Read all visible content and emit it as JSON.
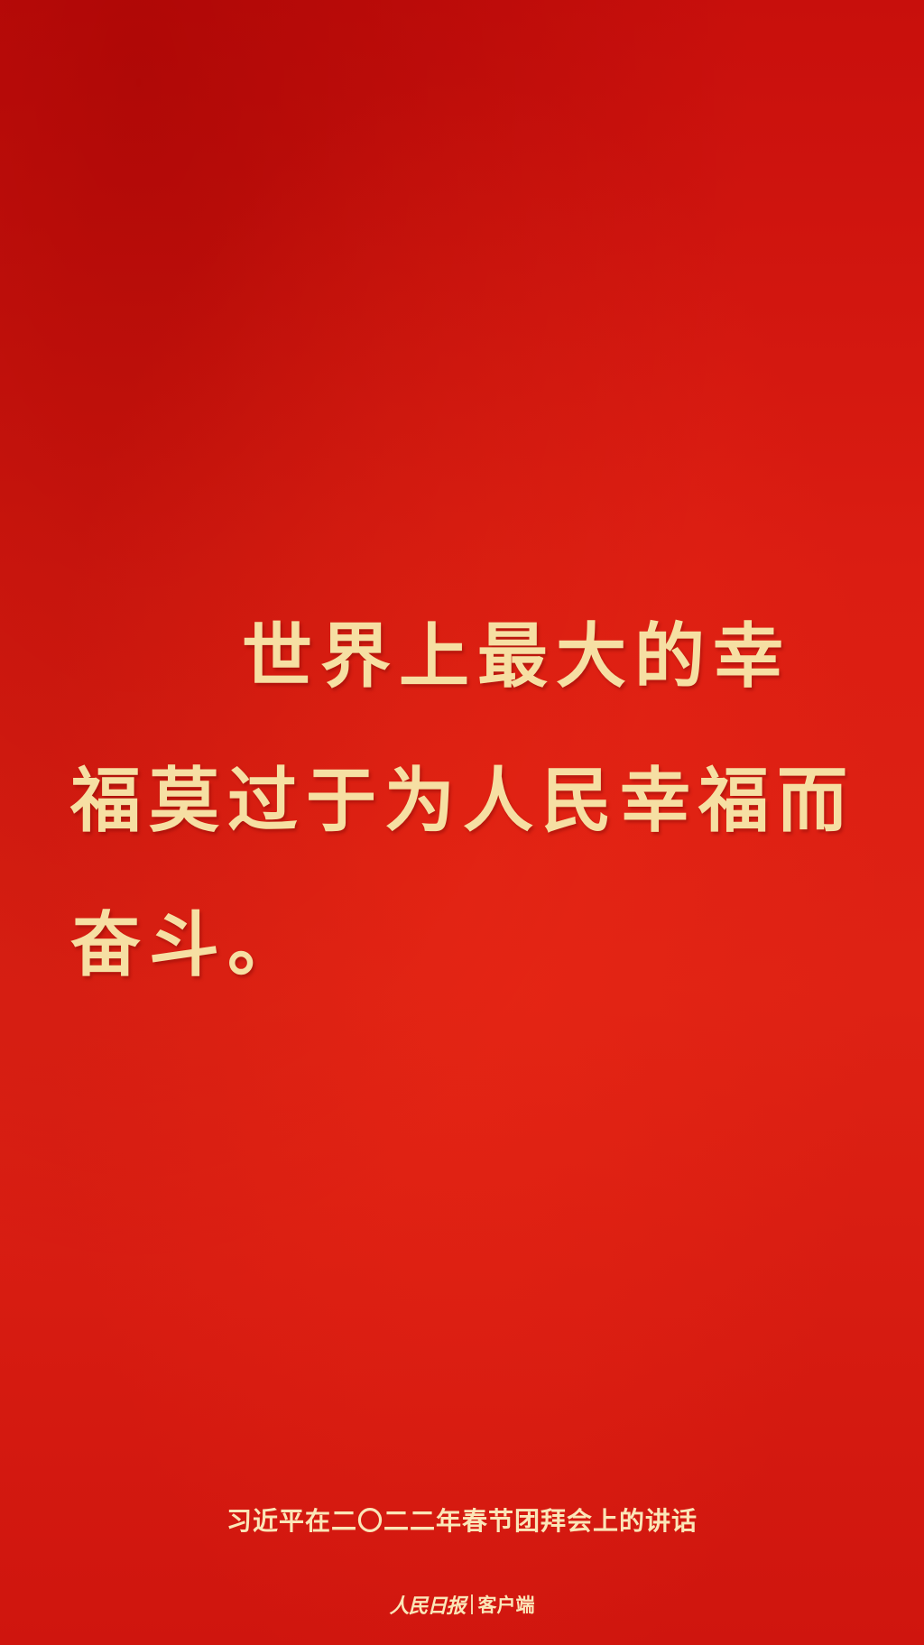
{
  "quote": {
    "text": "世界上最大的幸福莫过于为人民幸福而奋斗。"
  },
  "source": {
    "text": "习近平在二〇二二年春节团拜会上的讲话"
  },
  "brand": {
    "logo_text": "人民日报",
    "client_label": "客户端"
  },
  "colors": {
    "background": "#d81a10",
    "quote_text": "#f6dfa3",
    "caption_text": "#fbe6b8"
  }
}
